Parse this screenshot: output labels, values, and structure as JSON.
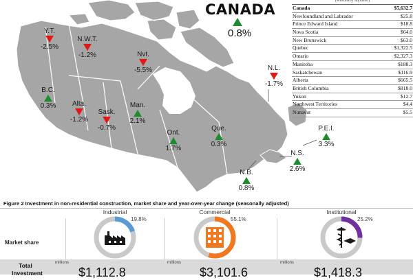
{
  "map": {
    "country_title": "CANADA",
    "country_change": "0.8%",
    "country_dir": "up",
    "provinces": [
      {
        "id": "yt",
        "label": "Y.T.",
        "change": "-2.5%",
        "dir": "down"
      },
      {
        "id": "nwt",
        "label": "N.W.T.",
        "change": "-1.2%",
        "dir": "down"
      },
      {
        "id": "nvt",
        "label": "Nvt.",
        "change": "-5.5%",
        "dir": "down"
      },
      {
        "id": "bc",
        "label": "B.C.",
        "change": "0.3%",
        "dir": "up"
      },
      {
        "id": "alta",
        "label": "Alta.",
        "change": "-1.2%",
        "dir": "down"
      },
      {
        "id": "sask",
        "label": "Sask.",
        "change": "-0.7%",
        "dir": "down"
      },
      {
        "id": "man",
        "label": "Man.",
        "change": "2.1%",
        "dir": "up"
      },
      {
        "id": "ont",
        "label": "Ont.",
        "change": "1.7%",
        "dir": "up"
      },
      {
        "id": "que",
        "label": "Que.",
        "change": "0.3%",
        "dir": "up"
      },
      {
        "id": "nl",
        "label": "N.L.",
        "change": "-1.7%",
        "dir": "down"
      },
      {
        "id": "pei",
        "label": "P.E.I.",
        "change": "3.3%",
        "dir": "up"
      },
      {
        "id": "ns",
        "label": "N.S.",
        "change": "2.6%",
        "dir": "up"
      },
      {
        "id": "nb",
        "label": "N.B.",
        "change": "0.8%",
        "dir": "up"
      }
    ]
  },
  "table": {
    "header_partial": "(seasonally adjusted)",
    "rows": [
      {
        "name": "Canada",
        "value": "$5,632.7",
        "bold": true
      },
      {
        "name": "Newfoundland and Labrador",
        "value": "$25.8"
      },
      {
        "name": "Prince Edward Island",
        "value": "$18.8"
      },
      {
        "name": "Nova Scotia",
        "value": "$64.0"
      },
      {
        "name": "New Brunswick",
        "value": "$63.0"
      },
      {
        "name": "Quebec",
        "value": "$1,322.5"
      },
      {
        "name": "Ontario",
        "value": "$2,327.3"
      },
      {
        "name": "Manitoba",
        "value": "$188.3"
      },
      {
        "name": "Saskatchewan",
        "value": "$116.9"
      },
      {
        "name": "Alberta",
        "value": "$665.5"
      },
      {
        "name": "British Columbia",
        "value": "$818.0"
      },
      {
        "name": "Yukon",
        "value": "$12.7"
      },
      {
        "name": "Northwest Territories",
        "value": "$4.4"
      },
      {
        "name": "Nunavut",
        "value": "$5.5"
      }
    ]
  },
  "figure2": {
    "title": "Figure 2 Investment in non-residential construction, market share and year-over-year change (seasonally adjusted)",
    "market_share_label": "Market share",
    "total_label_line1": "Total",
    "total_label_line2": "Investment",
    "units": "millions",
    "categories": [
      {
        "name": "Industrial",
        "share_pct": "19.8%",
        "share": 0.198,
        "color": "#5b9bd5",
        "icon": "factory-icon",
        "total": "$1,112.8"
      },
      {
        "name": "Commercial",
        "share_pct": "55.1%",
        "share": 0.551,
        "color": "#f07820",
        "icon": "office-building-icon",
        "total": "$3,101.6"
      },
      {
        "name": "Institutional",
        "share_pct": "25.2%",
        "share": 0.252,
        "color": "#7030a0",
        "icon": "caduceus-graduation-icon",
        "total": "$1,418.3"
      }
    ]
  },
  "colors": {
    "up": "#1e8b2f",
    "down": "#e01818",
    "land": "#a6a6a6",
    "water": "#ffffff",
    "border": "#ffffff"
  }
}
